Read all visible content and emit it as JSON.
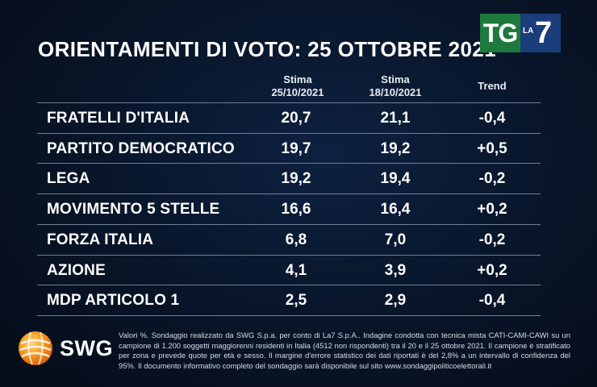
{
  "header": {
    "title": "ORIENTAMENTI DI VOTO: 25 OTTOBRE 2021",
    "logo_tg": "TG",
    "logo_la": "LA",
    "logo_seven": "7"
  },
  "chart_data": {
    "type": "table",
    "title": "ORIENTAMENTI DI VOTO: 25 OTTOBRE 2021",
    "columns": [
      {
        "line1": "Stima",
        "line2": "25/10/2021"
      },
      {
        "line1": "Stima",
        "line2": "18/10/2021"
      },
      {
        "line1": "Trend",
        "line2": ""
      }
    ],
    "rows": [
      {
        "party": "FRATELLI D'ITALIA",
        "stima_25": "20,7",
        "stima_18": "21,1",
        "trend": "-0,4"
      },
      {
        "party": "PARTITO DEMOCRATICO",
        "stima_25": "19,7",
        "stima_18": "19,2",
        "trend": "+0,5"
      },
      {
        "party": "LEGA",
        "stima_25": "19,2",
        "stima_18": "19,4",
        "trend": "-0,2"
      },
      {
        "party": "MOVIMENTO 5 STELLE",
        "stima_25": "16,6",
        "stima_18": "16,4",
        "trend": "+0,2"
      },
      {
        "party": "FORZA ITALIA",
        "stima_25": "6,8",
        "stima_18": "7,0",
        "trend": "-0,2"
      },
      {
        "party": "AZIONE",
        "stima_25": "4,1",
        "stima_18": "3,9",
        "trend": "+0,2"
      },
      {
        "party": "MDP ARTICOLO 1",
        "stima_25": "2,5",
        "stima_18": "2,9",
        "trend": "-0,4"
      }
    ]
  },
  "footer": {
    "brand": "SWG",
    "note": "Valori %. Sondaggio realizzato da SWG S.p.a. per conto di La7 S.p.A.. Indagine condotta con tecnica mista CATI-CAMI-CAWI su un campione di 1.200 soggetti maggiorenni residenti in Italia (4512 non rispondenti) tra il 20 e il 25 ottobre 2021. Il campione è stratificato per zona e prevede quote per età e sesso. Il margine d'errore statistico dei dati riportati è del 2,8% a un intervallo di confidenza del 95%. Il documento informativo completo del sondaggio sarà disponibile sul sito www.sondaggipoliticoelettorali.it"
  }
}
